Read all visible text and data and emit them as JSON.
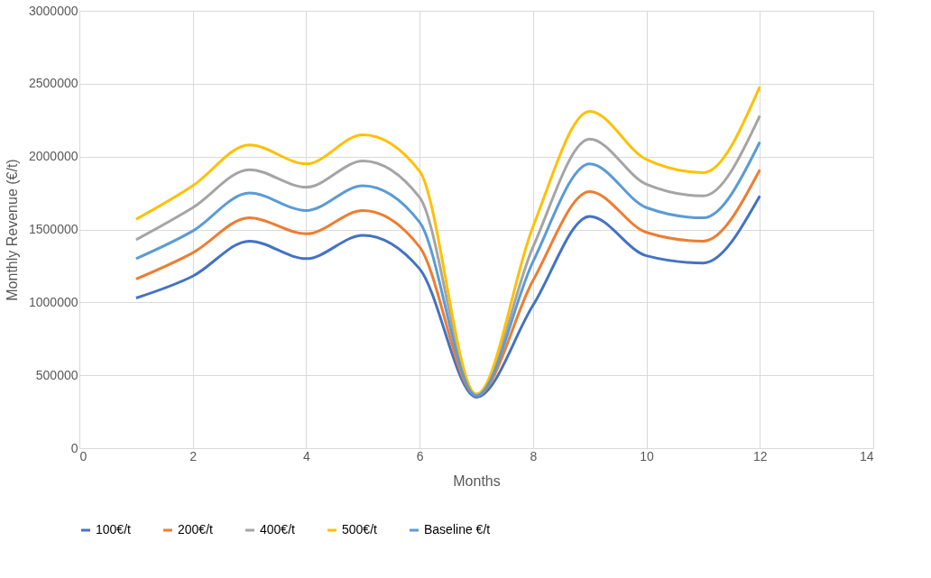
{
  "chart_data": {
    "type": "line",
    "xlabel": "Months",
    "ylabel": "Monthly Revenue (€/t)",
    "x": [
      1,
      2,
      3,
      4,
      5,
      6,
      7,
      8,
      9,
      10,
      11,
      12
    ],
    "xlim": [
      0,
      14
    ],
    "xticks": [
      0,
      2,
      4,
      6,
      8,
      10,
      12,
      14
    ],
    "ylim": [
      0,
      3000000
    ],
    "yticks": [
      0,
      500000,
      1000000,
      1500000,
      2000000,
      2500000,
      3000000
    ],
    "grid": true,
    "legend": "bottom",
    "marker": "none",
    "line_style": "solid",
    "series": [
      {
        "name": "100€/t",
        "color": "#4472c4",
        "values": [
          1030000,
          1180000,
          1420000,
          1300000,
          1460000,
          1230000,
          350000,
          980000,
          1590000,
          1320000,
          1270000,
          1730000
        ]
      },
      {
        "name": "200€/t",
        "color": "#ed7d31",
        "values": [
          1160000,
          1340000,
          1580000,
          1470000,
          1630000,
          1380000,
          360000,
          1150000,
          1760000,
          1480000,
          1420000,
          1910000
        ]
      },
      {
        "name": "400€/t",
        "color": "#a5a5a5",
        "values": [
          1430000,
          1650000,
          1910000,
          1790000,
          1970000,
          1720000,
          370000,
          1380000,
          2120000,
          1810000,
          1730000,
          2280000
        ]
      },
      {
        "name": "500€/t",
        "color": "#ffc000",
        "values": [
          1570000,
          1800000,
          2080000,
          1950000,
          2150000,
          1900000,
          370000,
          1520000,
          2310000,
          1980000,
          1890000,
          2480000
        ]
      },
      {
        "name": "Baseline €/t",
        "color": "#5b9bd5",
        "values": [
          1300000,
          1490000,
          1750000,
          1630000,
          1800000,
          1550000,
          360000,
          1280000,
          1950000,
          1650000,
          1580000,
          2100000
        ]
      }
    ]
  }
}
